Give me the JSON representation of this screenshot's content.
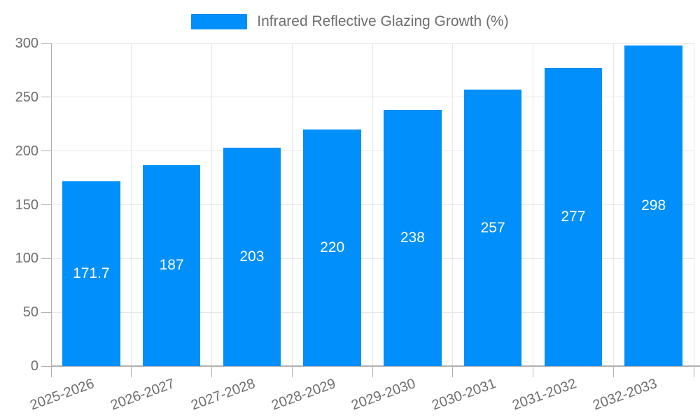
{
  "chart_data": {
    "type": "bar",
    "title": "",
    "legend": {
      "label": "Infrared Reflective Glazing Growth (%)",
      "position": "top"
    },
    "categories": [
      "2025-2026",
      "2026-2027",
      "2027-2028",
      "2028-2029",
      "2029-2030",
      "2030-2031",
      "2031-2032",
      "2032-2033"
    ],
    "series": [
      {
        "name": "Infrared Reflective Glazing Growth (%)",
        "values": [
          171.7,
          187,
          203,
          220,
          238,
          257,
          277,
          298
        ]
      }
    ],
    "data_labels": [
      "171.7",
      "187",
      "203",
      "220",
      "238",
      "257",
      "277",
      "298"
    ],
    "xlabel": "",
    "ylabel": "",
    "ylim": [
      0,
      300
    ],
    "yticks": [
      0,
      50,
      100,
      150,
      200,
      250,
      300
    ],
    "grid": true,
    "colors": {
      "bar": "#008FFB",
      "data_label": "#ffffff",
      "axis_label": "#6e6e6e",
      "legend_label": "#6e6e6e",
      "gridline": "#e7e7e7",
      "axis_line": "#b1b1b1"
    }
  }
}
